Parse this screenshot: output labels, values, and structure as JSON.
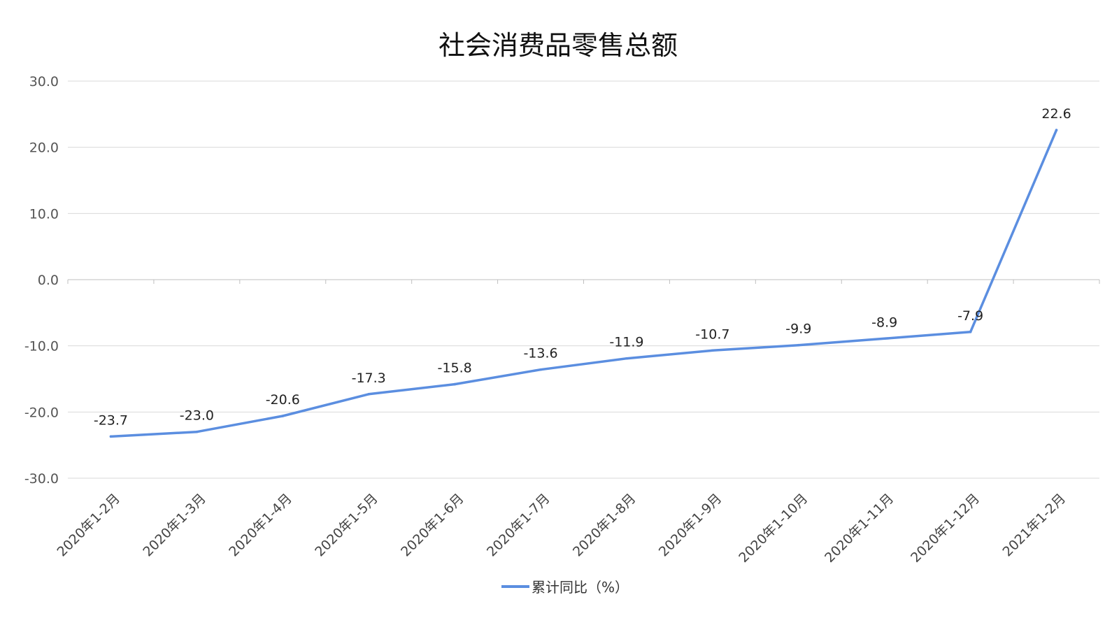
{
  "chart_data": {
    "type": "line",
    "title": "社会消费品零售总额",
    "categories": [
      "2020年1-2月",
      "2020年1-3月",
      "2020年1-4月",
      "2020年1-5月",
      "2020年1-6月",
      "2020年1-7月",
      "2020年1-8月",
      "2020年1-9月",
      "2020年1-10月",
      "2020年1-11月",
      "2020年1-12月",
      "2021年1-2月"
    ],
    "series": [
      {
        "name": "累计同比（%）",
        "values": [
          -23.7,
          -23.0,
          -20.6,
          -17.3,
          -15.8,
          -13.6,
          -11.9,
          -10.7,
          -9.9,
          -8.9,
          -7.9,
          22.6
        ],
        "color": "#5b8ee0"
      }
    ],
    "data_labels": [
      "-23.7",
      "-23.0",
      "-20.6",
      "-17.3",
      "-15.8",
      "-13.6",
      "-11.9",
      "-10.7",
      "-9.9",
      "-8.9",
      "-7.9",
      "22.6"
    ],
    "y_ticks": [
      30,
      20,
      10,
      0,
      -10,
      -20,
      -30
    ],
    "y_tick_labels": [
      "30.0",
      "20.0",
      "10.0",
      "0.0",
      "-10.0",
      "-20.0",
      "-30.0"
    ],
    "ylim": [
      -30,
      30
    ],
    "grid": true,
    "legend_position": "bottom"
  }
}
